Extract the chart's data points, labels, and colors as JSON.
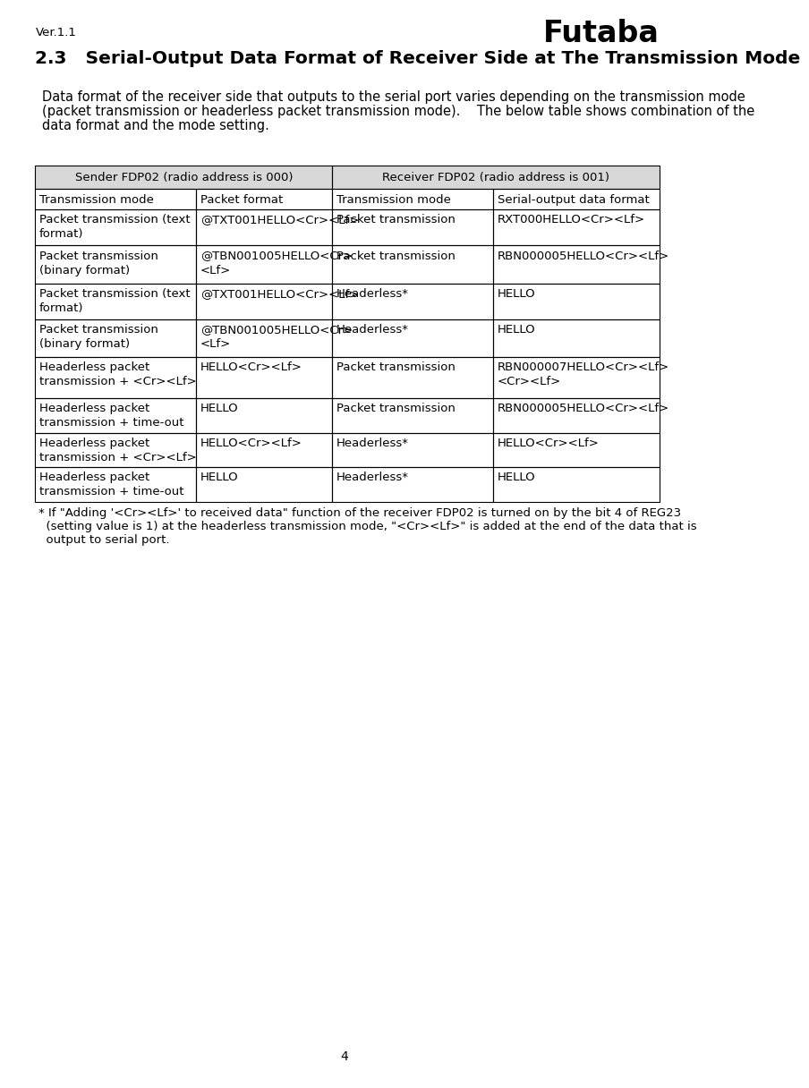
{
  "version": "Ver.1.1",
  "title": "2.3   Serial-Output Data Format of Receiver Side at The Transmission Mode",
  "intro_lines": [
    "Data format of the receiver side that outputs to the serial port varies depending on the transmission mode",
    "(packet transmission or headerless packet transmission mode).    The below table shows combination of the",
    "data format and the mode setting."
  ],
  "header_row1": [
    "Sender FDP02 (radio address is 000)",
    "Receiver FDP02 (radio address is 001)"
  ],
  "header_row2": [
    "Transmission mode",
    "Packet format",
    "Transmission mode",
    "Serial-output data format"
  ],
  "table_rows": [
    [
      "Packet transmission (text\nformat)",
      "@TXT001HELLO<Cr><Lf>",
      "Packet transmission",
      "RXT000HELLO<Cr><Lf>"
    ],
    [
      "Packet transmission\n(binary format)",
      "@TBN001005HELLO<Cr>\n<Lf>",
      "Packet transmission",
      "RBN000005HELLO<Cr><Lf>"
    ],
    [
      "Packet transmission (text\nformat)",
      "@TXT001HELLO<Cr><Lf>",
      "Headerless*",
      "HELLO"
    ],
    [
      "Packet transmission\n(binary format)",
      "@TBN001005HELLO<Cr>\n<Lf>",
      "Headerless*",
      "HELLO"
    ],
    [
      "Headerless packet\ntransmission + <Cr><Lf>",
      "HELLO<Cr><Lf>",
      "Packet transmission",
      "RBN000007HELLO<Cr><Lf>\n<Cr><Lf>"
    ],
    [
      "Headerless packet\ntransmission + time-out",
      "HELLO",
      "Packet transmission",
      "RBN000005HELLO<Cr><Lf>"
    ],
    [
      "Headerless packet\ntransmission + <Cr><Lf>",
      "HELLO<Cr><Lf>",
      "Headerless*",
      "HELLO<Cr><Lf>"
    ],
    [
      "Headerless packet\ntransmission + time-out",
      "HELLO",
      "Headerless*",
      "HELLO"
    ]
  ],
  "footnote_lines": [
    "* If \"Adding '<Cr><Lf>' to received data\" function of the receiver FDP02 is turned on by the bit 4 of REG23",
    "  (setting value is 1) at the headerless transmission mode, \"<Cr><Lf>\" is added at the end of the data that is",
    "  output to serial port."
  ],
  "page_number": "4",
  "futaba_logo": "Futaba",
  "col_props": [
    0.258,
    0.218,
    0.258,
    0.266
  ],
  "background_color": "#ffffff",
  "text_color": "#000000",
  "header1_bg": "#d8d8d8",
  "header2_bg": "#ffffff"
}
